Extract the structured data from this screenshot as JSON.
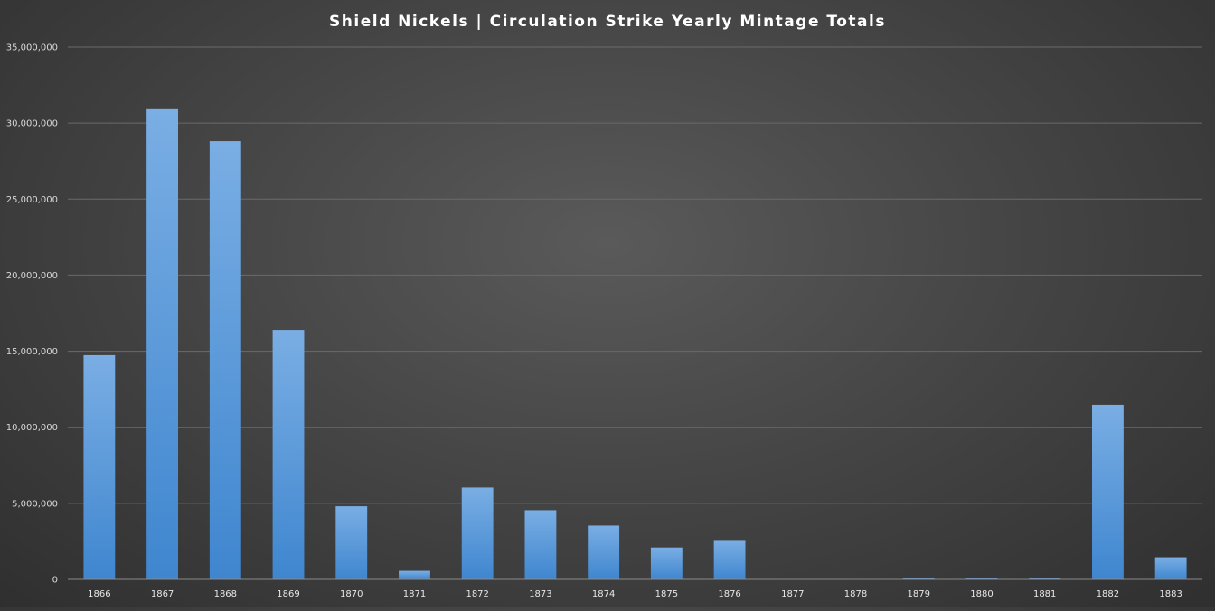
{
  "chart_data": {
    "type": "bar",
    "title": "Shield Nickels | Circulation Strike Yearly Mintage Totals",
    "xlabel": "",
    "ylabel": "",
    "categories": [
      "1866",
      "1867",
      "1868",
      "1869",
      "1870",
      "1871",
      "1872",
      "1873",
      "1874",
      "1875",
      "1876",
      "1877",
      "1878",
      "1879",
      "1880",
      "1881",
      "1882",
      "1883"
    ],
    "values": [
      14742500,
      30909500,
      28817000,
      16395000,
      4806000,
      561000,
      6036000,
      4550000,
      3538000,
      2097000,
      2530000,
      0,
      0,
      29100,
      19995,
      68800,
      11472900,
      1451500
    ],
    "ylim": [
      0,
      35000000
    ],
    "yticks": [
      "0",
      "5,000,000",
      "10,000,000",
      "15,000,000",
      "20,000,000",
      "25,000,000",
      "30,000,000",
      "35,000,000"
    ],
    "grid": true,
    "legend": "none",
    "colors": {
      "bar_top": "#7aaee4",
      "bar_bottom": "#3f86cf",
      "grid": "#6a6a6a",
      "axis": "#8a8a8a"
    }
  }
}
